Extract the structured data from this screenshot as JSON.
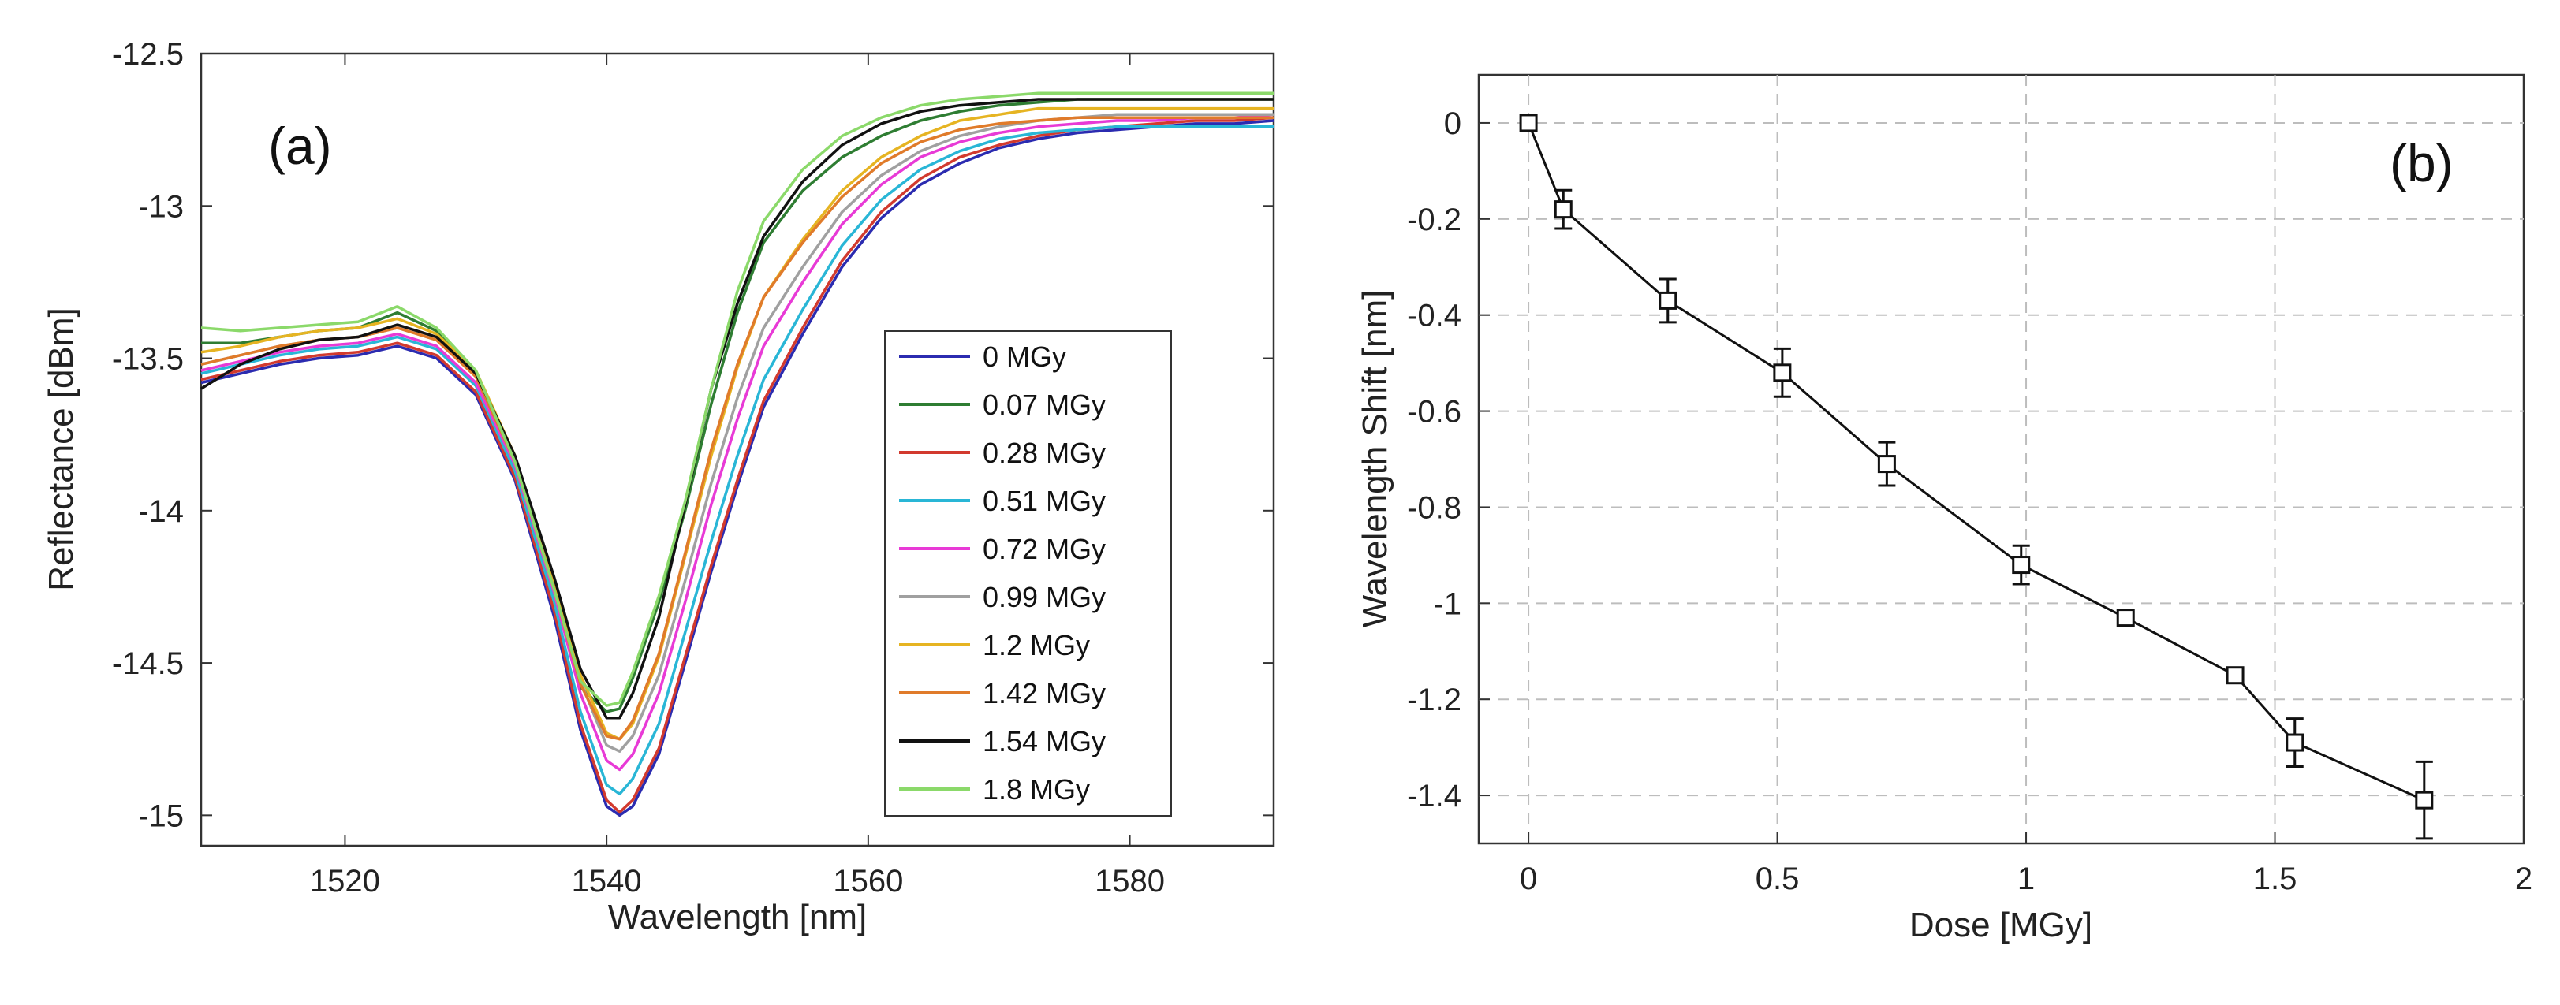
{
  "chart_data": [
    {
      "id": "a",
      "type": "line",
      "panel_label": "(a)",
      "title": "",
      "xlabel": "Wavelength [nm]",
      "ylabel": "Reflectance [dBm]",
      "xlim": [
        1509,
        1591
      ],
      "ylim": [
        -15.1,
        -12.5
      ],
      "xticks": [
        1520,
        1540,
        1560,
        1580
      ],
      "yticks": [
        -12.5,
        -13,
        -13.5,
        -14,
        -14.5,
        -15
      ],
      "ytick_labels": [
        "-12.5",
        "-13",
        "-13.5",
        "-14",
        "-14.5",
        "-15"
      ],
      "grid": false,
      "legend_position": "right",
      "x": [
        1509,
        1512,
        1515,
        1518,
        1521,
        1524,
        1527,
        1530,
        1533,
        1536,
        1538,
        1540,
        1541,
        1542,
        1544,
        1546,
        1548,
        1550,
        1552,
        1555,
        1558,
        1561,
        1564,
        1567,
        1570,
        1573,
        1576,
        1579,
        1582,
        1585,
        1588,
        1591
      ],
      "series": [
        {
          "name": "0 MGy",
          "color": "#2b2bb0",
          "values": [
            -13.58,
            -13.55,
            -13.52,
            -13.5,
            -13.49,
            -13.46,
            -13.5,
            -13.62,
            -13.9,
            -14.35,
            -14.72,
            -14.97,
            -15.0,
            -14.97,
            -14.8,
            -14.5,
            -14.2,
            -13.92,
            -13.66,
            -13.42,
            -13.2,
            -13.04,
            -12.93,
            -12.86,
            -12.81,
            -12.78,
            -12.76,
            -12.75,
            -12.74,
            -12.73,
            -12.73,
            -12.72
          ]
        },
        {
          "name": "0.07 MGy",
          "color": "#2e7d32",
          "values": [
            -13.45,
            -13.45,
            -13.43,
            -13.41,
            -13.4,
            -13.35,
            -13.41,
            -13.55,
            -13.85,
            -14.28,
            -14.58,
            -14.66,
            -14.65,
            -14.55,
            -14.3,
            -14.0,
            -13.65,
            -13.35,
            -13.12,
            -12.95,
            -12.84,
            -12.77,
            -12.72,
            -12.69,
            -12.67,
            -12.66,
            -12.65,
            -12.65,
            -12.65,
            -12.65,
            -12.65,
            -12.65
          ]
        },
        {
          "name": "0.28 MGy",
          "color": "#d23a2e",
          "values": [
            -13.57,
            -13.54,
            -13.51,
            -13.49,
            -13.48,
            -13.45,
            -13.49,
            -13.61,
            -13.89,
            -14.33,
            -14.7,
            -14.95,
            -14.99,
            -14.95,
            -14.78,
            -14.48,
            -14.18,
            -13.9,
            -13.64,
            -13.4,
            -13.18,
            -13.02,
            -12.91,
            -12.84,
            -12.8,
            -12.77,
            -12.75,
            -12.74,
            -12.73,
            -12.72,
            -12.72,
            -12.71
          ]
        },
        {
          "name": "0.51 MGy",
          "color": "#29b6d6",
          "values": [
            -13.55,
            -13.52,
            -13.49,
            -13.47,
            -13.46,
            -13.43,
            -13.47,
            -13.59,
            -13.87,
            -14.3,
            -14.66,
            -14.9,
            -14.93,
            -14.88,
            -14.7,
            -14.4,
            -14.1,
            -13.82,
            -13.57,
            -13.34,
            -13.13,
            -12.98,
            -12.88,
            -12.82,
            -12.78,
            -12.76,
            -12.75,
            -12.74,
            -12.74,
            -12.74,
            -12.74,
            -12.74
          ]
        },
        {
          "name": "0.72 MGy",
          "color": "#e83ad6",
          "values": [
            -13.54,
            -13.51,
            -13.48,
            -13.46,
            -13.45,
            -13.42,
            -13.46,
            -13.58,
            -13.85,
            -14.27,
            -14.6,
            -14.82,
            -14.85,
            -14.8,
            -14.6,
            -14.3,
            -13.98,
            -13.7,
            -13.46,
            -13.25,
            -13.06,
            -12.93,
            -12.84,
            -12.79,
            -12.76,
            -12.74,
            -12.73,
            -12.72,
            -12.72,
            -12.71,
            -12.71,
            -12.7
          ]
        },
        {
          "name": "0.99 MGy",
          "color": "#a0a0a0",
          "values": [
            -13.52,
            -13.49,
            -13.46,
            -13.44,
            -13.43,
            -13.4,
            -13.44,
            -13.56,
            -13.83,
            -14.25,
            -14.56,
            -14.77,
            -14.79,
            -14.74,
            -14.54,
            -14.23,
            -13.91,
            -13.63,
            -13.4,
            -13.2,
            -13.02,
            -12.9,
            -12.82,
            -12.77,
            -12.74,
            -12.72,
            -12.71,
            -12.7,
            -12.7,
            -12.7,
            -12.7,
            -12.7
          ]
        },
        {
          "name": "1.2 MGy",
          "color": "#e6b422",
          "values": [
            -13.48,
            -13.46,
            -13.43,
            -13.41,
            -13.4,
            -13.37,
            -13.42,
            -13.54,
            -13.82,
            -14.24,
            -14.54,
            -14.73,
            -14.75,
            -14.7,
            -14.48,
            -14.15,
            -13.82,
            -13.53,
            -13.3,
            -13.11,
            -12.95,
            -12.84,
            -12.77,
            -12.72,
            -12.7,
            -12.68,
            -12.68,
            -12.68,
            -12.68,
            -12.68,
            -12.68,
            -12.68
          ]
        },
        {
          "name": "1.42 MGy",
          "color": "#e07b2a",
          "values": [
            -13.52,
            -13.49,
            -13.46,
            -13.44,
            -13.43,
            -13.4,
            -13.44,
            -13.56,
            -13.84,
            -14.26,
            -14.57,
            -14.74,
            -14.75,
            -14.69,
            -14.47,
            -14.14,
            -13.8,
            -13.52,
            -13.3,
            -13.12,
            -12.97,
            -12.86,
            -12.79,
            -12.75,
            -12.73,
            -12.72,
            -12.71,
            -12.71,
            -12.71,
            -12.71,
            -12.71,
            -12.71
          ]
        },
        {
          "name": "1.54 MGy",
          "color": "#111111",
          "values": [
            -13.6,
            -13.52,
            -13.47,
            -13.44,
            -13.43,
            -13.39,
            -13.43,
            -13.55,
            -13.82,
            -14.22,
            -14.52,
            -14.68,
            -14.68,
            -14.6,
            -14.35,
            -13.98,
            -13.6,
            -13.32,
            -13.1,
            -12.92,
            -12.8,
            -12.73,
            -12.69,
            -12.67,
            -12.66,
            -12.65,
            -12.65,
            -12.65,
            -12.65,
            -12.65,
            -12.65,
            -12.65
          ]
        },
        {
          "name": "1.8 MGy",
          "color": "#8bd96a",
          "values": [
            -13.4,
            -13.41,
            -13.4,
            -13.39,
            -13.38,
            -13.33,
            -13.4,
            -13.54,
            -13.84,
            -14.26,
            -14.56,
            -14.64,
            -14.63,
            -14.53,
            -14.28,
            -13.97,
            -13.6,
            -13.28,
            -13.05,
            -12.88,
            -12.77,
            -12.71,
            -12.67,
            -12.65,
            -12.64,
            -12.63,
            -12.63,
            -12.63,
            -12.63,
            -12.63,
            -12.63,
            -12.63
          ]
        }
      ]
    },
    {
      "id": "b",
      "type": "line",
      "panel_label": "(b)",
      "title": "",
      "xlabel": "Dose [MGy]",
      "ylabel": "Wavelength Shift [nm]",
      "xlim": [
        -0.1,
        2.0
      ],
      "ylim": [
        -1.5,
        0.1
      ],
      "xticks": [
        0,
        0.5,
        1,
        1.5,
        2
      ],
      "xtick_labels": [
        "0",
        "0.5",
        "1",
        "1.5",
        "2"
      ],
      "yticks": [
        0,
        -0.2,
        -0.4,
        -0.6,
        -0.8,
        -1,
        -1.2,
        -1.4
      ],
      "ytick_labels": [
        "0",
        "-0.2",
        "-0.4",
        "-0.6",
        "-0.8",
        "-1",
        "-1.2",
        "-1.4"
      ],
      "grid": true,
      "marker": "square",
      "color": "#111111",
      "x": [
        0,
        0.07,
        0.28,
        0.51,
        0.72,
        0.99,
        1.2,
        1.42,
        1.54,
        1.8
      ],
      "y": [
        0,
        -0.18,
        -0.37,
        -0.52,
        -0.71,
        -0.92,
        -1.03,
        -1.15,
        -1.29,
        -1.41
      ],
      "yerr": [
        0,
        0.04,
        0.045,
        0.05,
        0.045,
        0.04,
        0.015,
        0.015,
        0.05,
        0.08
      ]
    }
  ]
}
